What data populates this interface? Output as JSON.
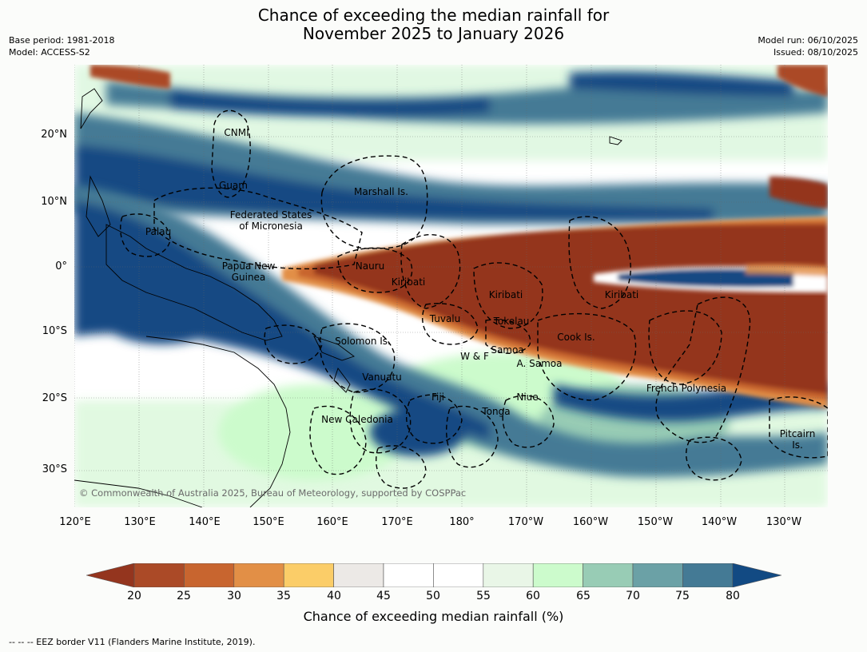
{
  "title_line1": "Chance of exceeding the median rainfall for",
  "title_line2": "November 2025 to January 2026",
  "meta": {
    "base_period": "Base period: 1981-2018",
    "model": "Model: ACCESS-S2",
    "model_run": "Model run: 06/10/2025",
    "issued": "Issued: 08/10/2025"
  },
  "latitude_labels": [
    "20°N",
    "10°N",
    "0°",
    "10°S",
    "20°S",
    "30°S"
  ],
  "longitude_labels": [
    "120°E",
    "130°E",
    "140°E",
    "150°E",
    "160°E",
    "170°E",
    "180°",
    "170°W",
    "160°W",
    "150°W",
    "140°W",
    "130°W"
  ],
  "places": {
    "cnmi": "CNMI",
    "guam": "Guam",
    "marshall": "Marshall Is.",
    "fsm_1": "Federated States",
    "fsm_2": "of Micronesia",
    "palau": "Palau",
    "png_1": "Papua New",
    "png_2": "Guinea",
    "nauru": "Nauru",
    "kiribati_w": "Kiribati",
    "kiribati_c": "Kiribati",
    "kiribati_e": "Kiribati",
    "tuvalu": "Tuvalu",
    "tokelau": "Tokelau",
    "cook": "Cook Is.",
    "solomon": "Solomon Is.",
    "wf": "W & F",
    "samoa": "Samoa",
    "asamoa": "A. Samoa",
    "vanuatu": "Vanuatu",
    "fiji": "Fiji",
    "niue": "Niue",
    "tonga": "Tonga",
    "newcal": "New Caledonia",
    "frpoly": "French Polynesia",
    "pitcairn_1": "Pitcairn",
    "pitcairn_2": "Is."
  },
  "copyright": "© Commonwealth of Australia 2025, Bureau of Meteorology, supported by COSPPac",
  "colorbar": {
    "ticks": [
      "20",
      "25",
      "30",
      "35",
      "40",
      "45",
      "50",
      "55",
      "60",
      "65",
      "70",
      "75",
      "80"
    ],
    "colors": [
      "#ab4a27",
      "#c8652f",
      "#e28f46",
      "#fbcd68",
      "#ece9e6",
      "#ffffff",
      "#ffffff",
      "#e9f6e7",
      "#ccfbcc",
      "#98ccb5",
      "#6ba1a6",
      "#447a95"
    ],
    "under_color": "#94351e",
    "over_color": "#124a83",
    "label": "Chance of exceeding median rainfall (%)"
  },
  "footer": "--  --  -- EEZ border V11 (Flanders Marine Institute, 2019)."
}
